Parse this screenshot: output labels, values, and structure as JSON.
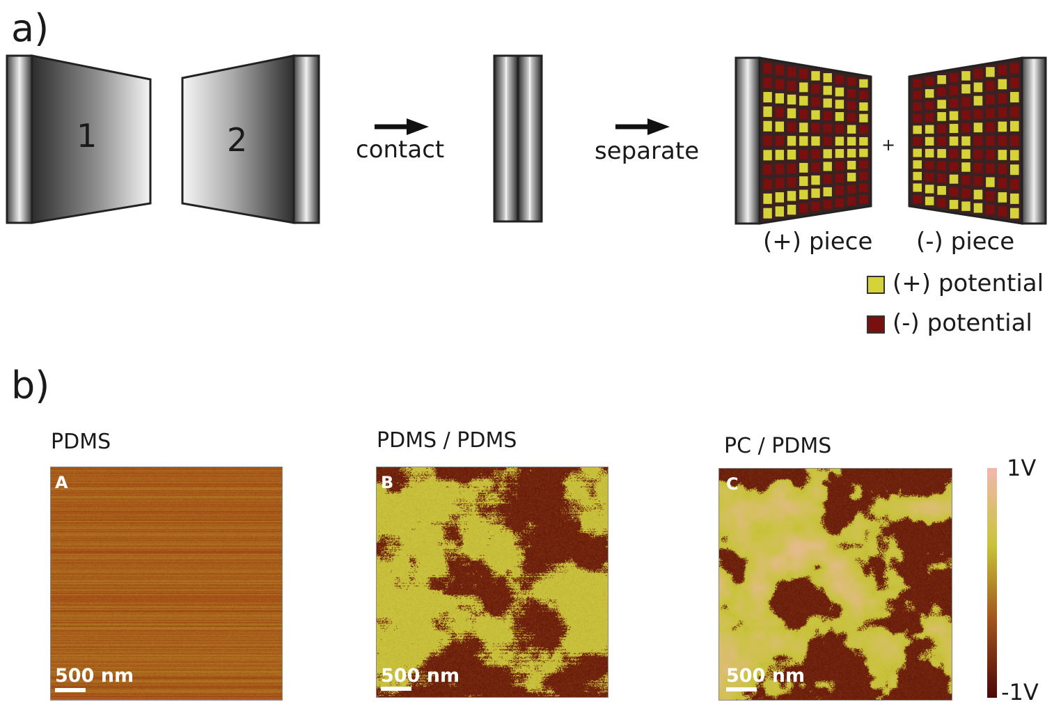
{
  "panel_a": {
    "letter": "a)",
    "plate1_label": "1",
    "plate2_label": "2",
    "step1_label": "contact",
    "step2_label": "separate",
    "plus_sign": "+",
    "pos_piece_label": "(+) piece",
    "neg_piece_label": "(-) piece",
    "legend": [
      {
        "label": "(+) potential",
        "color": "#d6d23a"
      },
      {
        "label": "(-) potential",
        "color": "#7a0f0f"
      }
    ]
  },
  "panel_b": {
    "letter": "b)",
    "maps": [
      {
        "title": "PDMS",
        "letter": "A",
        "scale": "500 nm"
      },
      {
        "title": "PDMS / PDMS",
        "letter": "B",
        "scale": "500 nm"
      },
      {
        "title": "PC / PDMS",
        "letter": "C",
        "scale": "500 nm"
      }
    ],
    "colorbar": {
      "max": "1V",
      "min": "-1V",
      "colors": [
        "#f2b7b0",
        "#c8c43a",
        "#a0521c",
        "#4a0808"
      ]
    }
  }
}
